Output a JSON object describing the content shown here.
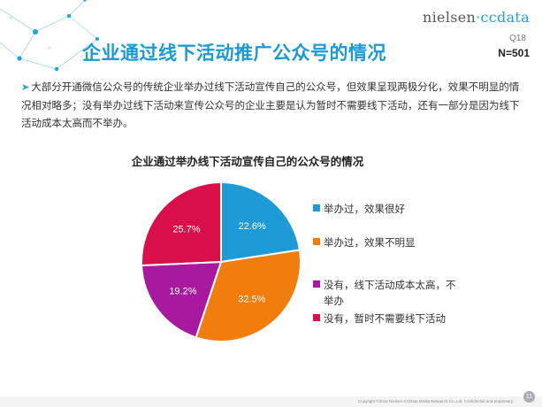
{
  "header": {
    "brand_part1": "nielsen",
    "brand_part2": "ccdata",
    "question": "Q18",
    "sample": "N=501"
  },
  "title": "企业通过线下活动推广公众号的情况",
  "description": {
    "bullet": "➤",
    "text": "大部分开通微信公众号的传统企业举办过线下活动宣传自己的公众号，但效果呈现两极分化，效果不明显的情况相对略多；没有举办过线下活动来宣传公众号的企业主要是认为暂时不需要线下活动，还有一部分是因为线下活动成本太高而不举办。"
  },
  "chart_data": {
    "type": "pie",
    "title": "企业通过举办线下活动宣传自己的公众号的情况",
    "unit": "%",
    "slices": [
      {
        "label": "举办过，效果很好",
        "value": 22.6,
        "display": "22.6%",
        "color": "#1e9bd7"
      },
      {
        "label": "举办过，效果不明显",
        "value": 32.5,
        "display": "32.5%",
        "color": "#f07d0e"
      },
      {
        "label": "没有，线下活动成本太高，不举办",
        "value": 19.2,
        "display": "19.2%",
        "color": "#a7199f"
      },
      {
        "label": "没有，暂时不需要线下活动",
        "value": 25.7,
        "display": "25.7%",
        "color": "#d80f49"
      }
    ],
    "start_angle": "12 o'clock",
    "direction": "clockwise",
    "legend_position": "right"
  },
  "footer": {
    "copyright": "Copyright ©2016  Nielsen-CCData Media Research Co.,Ltd. Confidential and proprietary.",
    "page": "11"
  }
}
